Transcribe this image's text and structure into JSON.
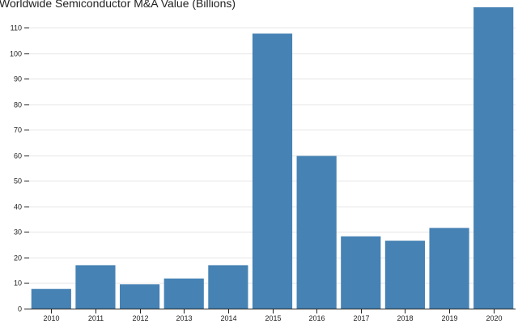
{
  "chart_data": {
    "type": "bar",
    "title": "Worldwide Semiconductor M&A Value (Billions)",
    "xlabel": "",
    "ylabel": "",
    "categories": [
      "2010",
      "2011",
      "2012",
      "2013",
      "2014",
      "2015",
      "2016",
      "2017",
      "2018",
      "2019",
      "2020"
    ],
    "values": [
      7.7,
      17,
      9.5,
      11.8,
      17,
      107.7,
      59.8,
      28.3,
      26.6,
      31.6,
      118
    ],
    "ylim": [
      0,
      118
    ],
    "yticks": [
      0,
      10,
      20,
      30,
      40,
      50,
      60,
      70,
      80,
      90,
      100,
      110
    ],
    "grid": true,
    "bar_color": "#4682b4"
  }
}
